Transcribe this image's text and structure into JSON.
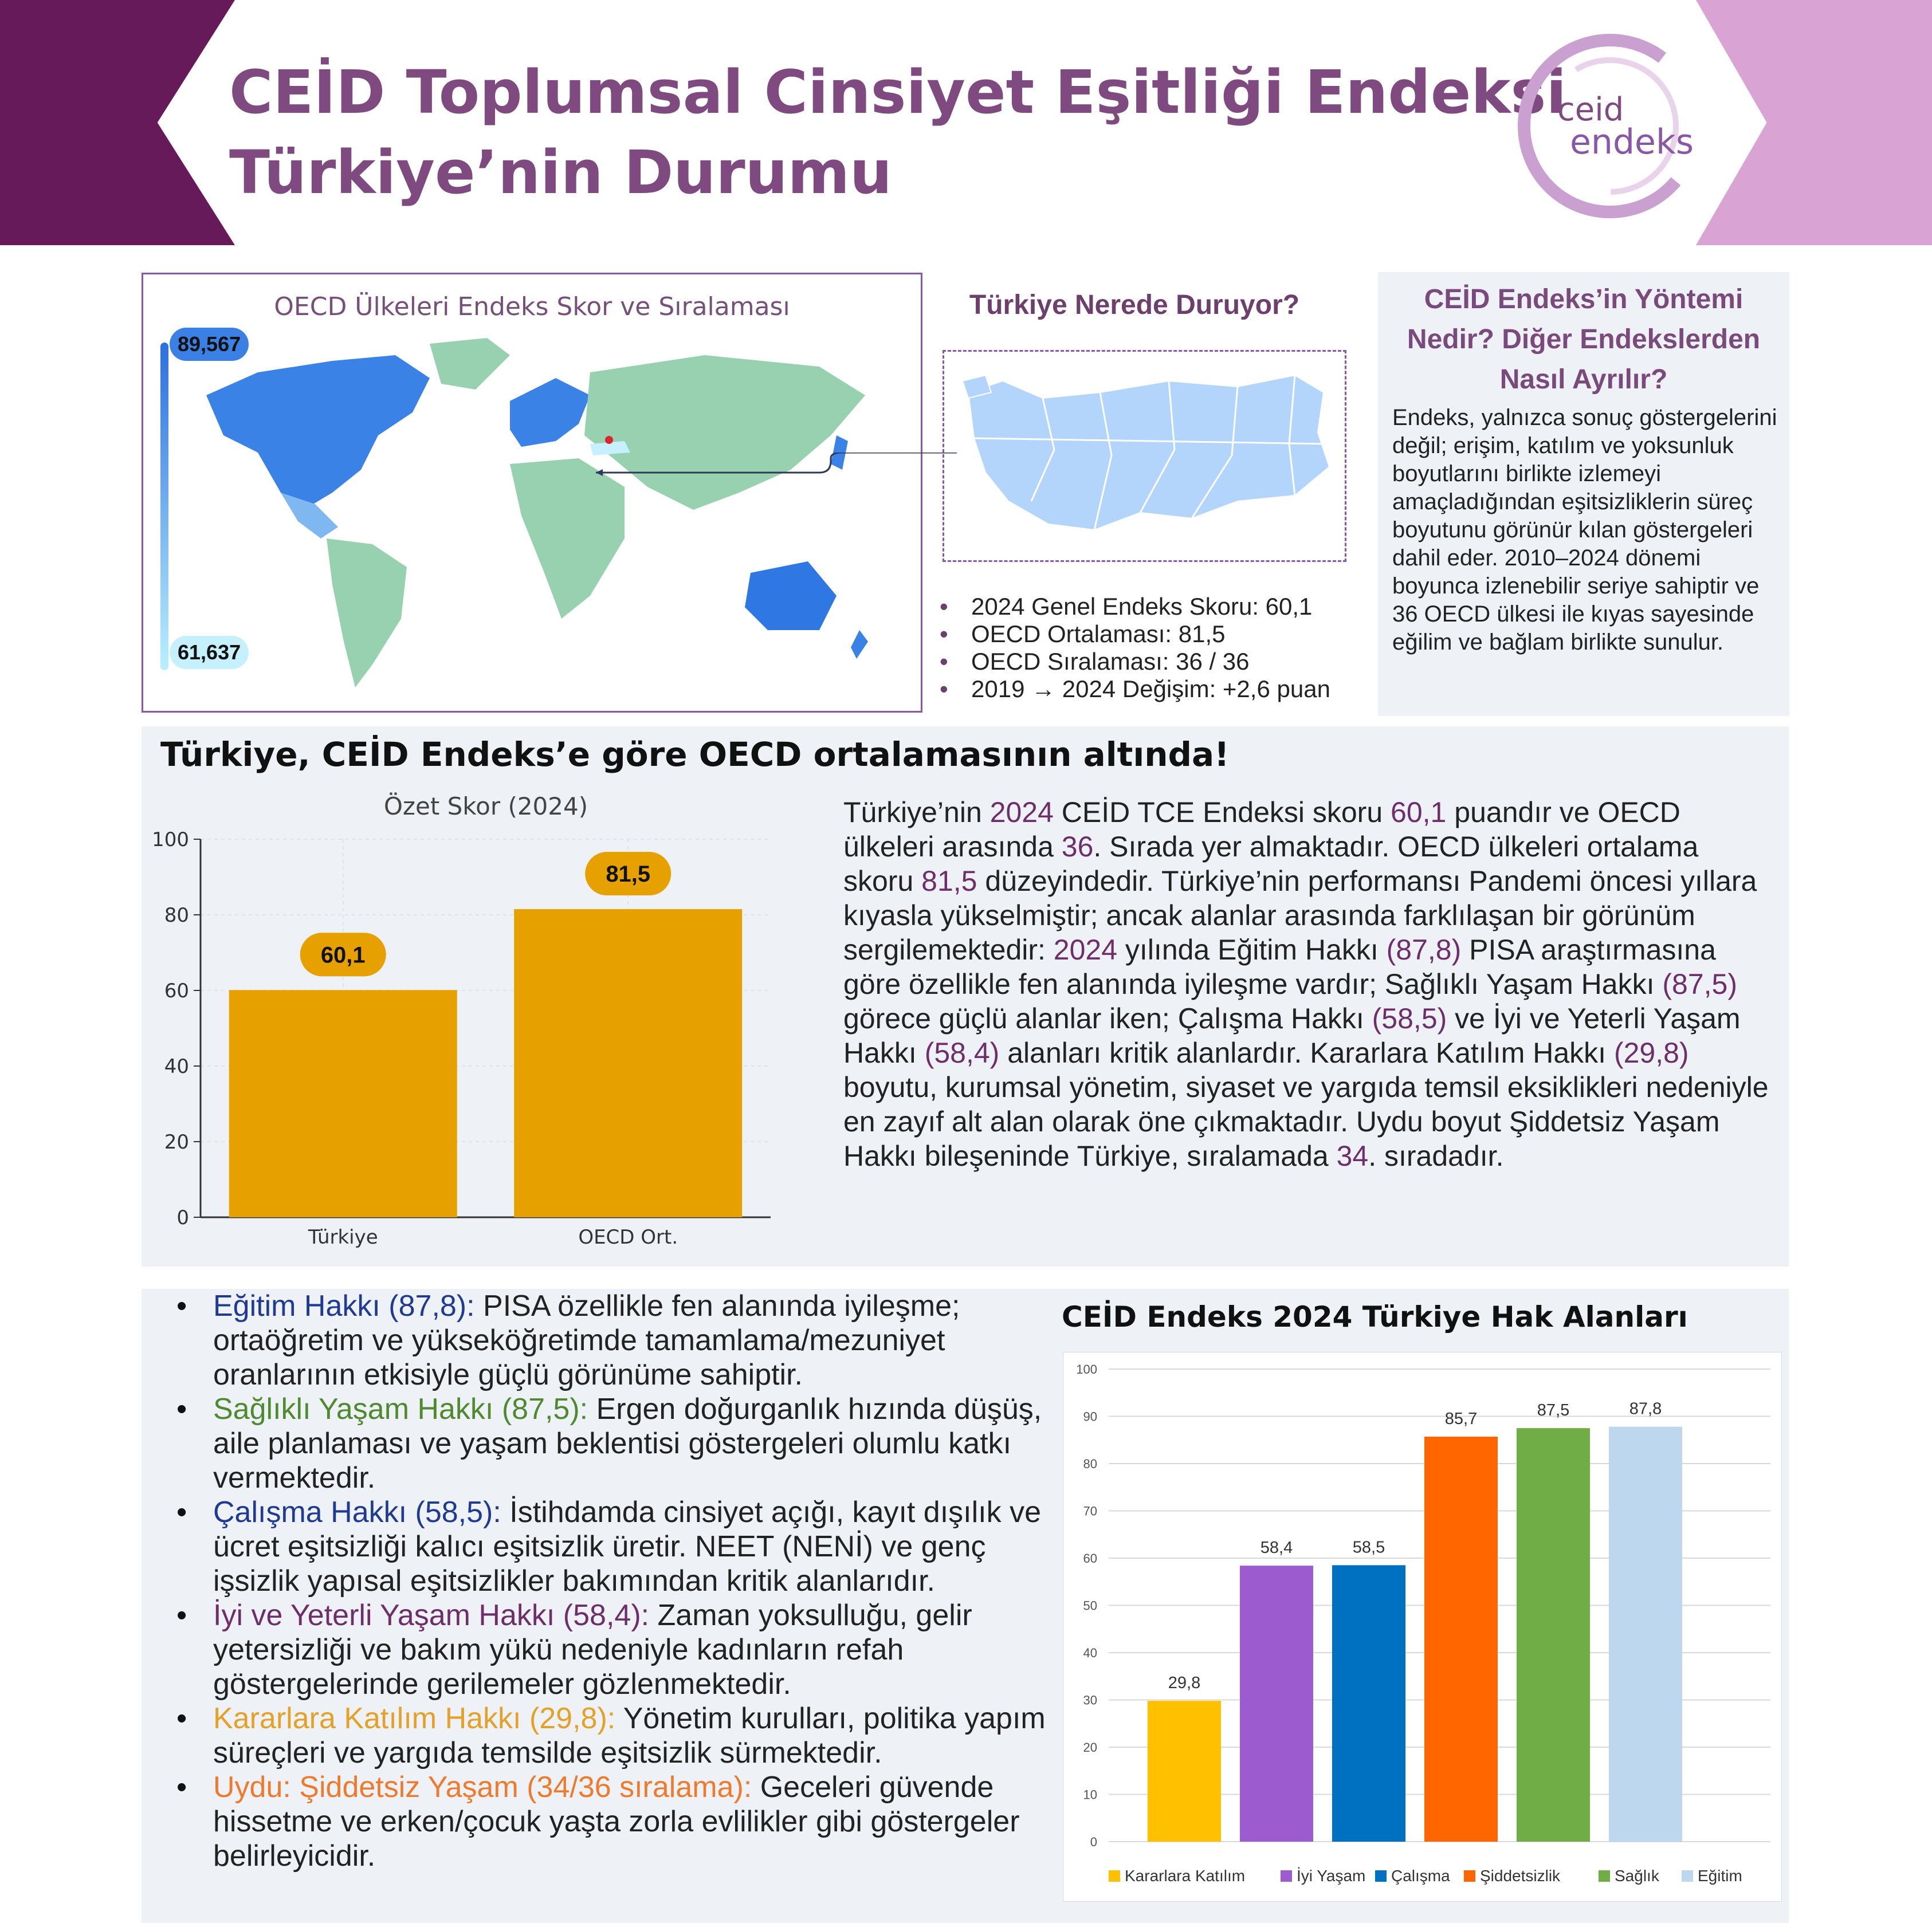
{
  "header": {
    "title_line1": "CEİD Toplumsal Cinsiyet Eşitliği Endeksi",
    "title_line2": "Türkiye’nin Durumu",
    "logo_text_top": "ceid",
    "logo_text_bottom": "endeks",
    "colors": {
      "left_band": "#661a5a",
      "right_band": "#d9a3d4",
      "title": "#7e4a7f"
    }
  },
  "map_panel": {
    "title": "OECD Ülkeleri Endeks Skor ve Sıralaması",
    "legend_max": "89,567",
    "legend_min": "61,637",
    "colors": {
      "high": "#2b6fde",
      "low": "#b9f0ff",
      "land": "#98d1b0"
    }
  },
  "turkey_panel": {
    "title": "Türkiye Nerede Duruyor?",
    "facts": [
      "2024 Genel Endeks Skoru: 60,1",
      "OECD Ortalaması: 81,5",
      "OECD Sıralaması: 36 / 36",
      "2019 → 2024 Değişim: +2,6 puan"
    ]
  },
  "method_panel": {
    "title": "CEİD Endeks’in Yöntemi Nedir? Diğer Endekslerden Nasıl Ayrılır?",
    "text": "Endeks, yalnızca sonuç göstergelerini değil; erişim, katılım ve yoksunluk boyutlarını birlikte izlemeyi amaçladığından eşitsizliklerin süreç boyutunu görünür kılan göstergeleri dahil eder. 2010–2024 dönemi boyunca izlenebilir seriye sahiptir ve 36 OECD ülkesi ile kıyas sayesinde eğilim ve bağlam birlikte sunulur."
  },
  "middle": {
    "headline": "Türkiye, CEİD Endeks’e göre  OECD ortalamasının altında!",
    "paragraph": [
      {
        "t": "Türkiye’nin "
      },
      {
        "t": "2024",
        "h": true
      },
      {
        "t": " CEİD TCE Endeksi skoru "
      },
      {
        "t": "60,1",
        "h": true
      },
      {
        "t": " puandır ve OECD ülkeleri arasında "
      },
      {
        "t": "36",
        "h": true
      },
      {
        "t": ". Sırada yer almaktadır. OECD ülkeleri ortalama skoru "
      },
      {
        "t": "81,5",
        "h": true
      },
      {
        "t": " düzeyindedir. Türkiye’nin performansı Pandemi öncesi yıllara kıyasla yükselmiştir; ancak alanlar arasında farklılaşan bir görünüm sergilemektedir: "
      },
      {
        "t": "2024",
        "h": true
      },
      {
        "t": " yılında Eğitim Hakkı "
      },
      {
        "t": "(87,8)",
        "h": true
      },
      {
        "t": " PISA araştırmasına göre özellikle fen alanında iyileşme vardır; Sağlıklı Yaşam Hakkı "
      },
      {
        "t": "(87,5)",
        "h": true
      },
      {
        "t": " görece güçlü alanlar iken; Çalışma Hakkı "
      },
      {
        "t": "(58,5)",
        "h": true
      },
      {
        "t": " ve İyi ve Yeterli Yaşam Hakkı "
      },
      {
        "t": "(58,4)",
        "h": true
      },
      {
        "t": " alanları kritik alanlardır.  Kararlara Katılım Hakkı "
      },
      {
        "t": "(29,8)",
        "h": true
      },
      {
        "t": " boyutu, kurumsal yönetim, siyaset ve yargıda temsil eksiklikleri nedeniyle en zayıf alt alan olarak öne çıkmaktadır. Uydu boyut Şiddetsiz Yaşam Hakkı bileşeninde Türkiye, sıralamada "
      },
      {
        "t": "34",
        "h": true
      },
      {
        "t": ". sıradadır."
      }
    ]
  },
  "rights_list": [
    {
      "name": "Eğitim Hakkı (87,8):",
      "color": "#1f3a93",
      "text": " PISA özellikle fen alanında iyileşme; ortaöğretim ve yükseköğretimde tamamlama/mezuniyet oranlarının etkisiyle güçlü görünüme sahiptir."
    },
    {
      "name": "Sağlıklı Yaşam Hakkı (87,5):",
      "color": "#4e8a2f",
      "text": " Ergen doğurganlık hızında düşüş, aile planlaması ve yaşam beklentisi göstergeleri olumlu katkı vermektedir."
    },
    {
      "name": "Çalışma Hakkı (58,5):",
      "color": "#1f3a93",
      "text": " İstihdamda cinsiyet açığı, kayıt dışılık ve ücret eşitsizliği kalıcı eşitsizlik üretir. NEET (NENİ) ve genç işsizlik yapısal eşitsizlikler bakımından kritik alanlarıdır."
    },
    {
      "name": "İyi ve Yeterli Yaşam Hakkı (58,4):",
      "color": "#6d2e6b",
      "text": " Zaman yoksulluğu, gelir yetersizliği ve bakım yükü nedeniyle kadınların refah göstergelerinde gerilemeler gözlenmektedir."
    },
    {
      "name": "Kararlara Katılım Hakkı (29,8):",
      "color": "#e5a028",
      "text": " Yönetim kurulları, politika yapım süreçleri ve yargıda temsilde eşitsizlik sürmektedir."
    },
    {
      "name": "Uydu: Şiddetsiz Yaşam (34/36 sıralama):",
      "color": "#ee7a2d",
      "text": " Geceleri güvende hissetme ve erken/çocuk yaşta zorla evlilikler gibi göstergeler belirleyicidir."
    }
  ],
  "chart_data": [
    {
      "type": "bar",
      "title": "Özet Skor (2024)",
      "categories": [
        "Türkiye",
        "OECD Ort."
      ],
      "values": [
        60.1,
        81.5
      ],
      "value_labels": [
        "60,1",
        "81,5"
      ],
      "yticks": [
        "0",
        "20",
        "40",
        "60",
        "80",
        "100"
      ],
      "ylim": [
        0,
        100
      ],
      "grid": true,
      "color": "#e6a100"
    },
    {
      "type": "bar",
      "title": "CEİD Endeks 2024 Türkiye Hak Alanları",
      "categories": [
        "Kararlara Katılım",
        "İyi Yaşam",
        "Çalışma",
        "Şiddetsizlik",
        "Sağlık",
        "Eğitim"
      ],
      "values": [
        29.8,
        58.4,
        58.5,
        85.7,
        87.5,
        87.8
      ],
      "value_labels": [
        "29,8",
        "58,4",
        "58,5",
        "85,7",
        "87,5",
        "87,8"
      ],
      "colors": [
        "#ffc000",
        "#9d5bd0",
        "#0070c0",
        "#ff6600",
        "#70ad47",
        "#bdd7ee"
      ],
      "yticks": [
        "0",
        "10",
        "20",
        "30",
        "40",
        "50",
        "60",
        "70",
        "80",
        "90",
        "100"
      ],
      "ylim": [
        0,
        100
      ],
      "grid": true,
      "legend": "bottom"
    }
  ]
}
